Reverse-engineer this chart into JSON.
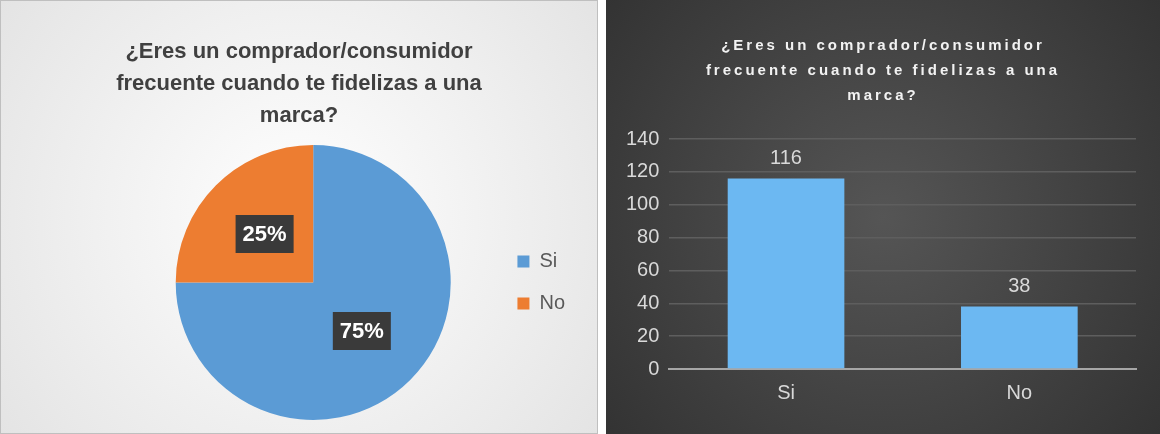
{
  "chart_data": [
    {
      "type": "pie",
      "title": "¿Eres un comprador/consumidor frecuente cuando te fidelizas a una marca?",
      "categories": [
        "Si",
        "No"
      ],
      "values": [
        75,
        25
      ],
      "colors": [
        "#5b9bd5",
        "#ed7d31"
      ],
      "value_labels": [
        "75%",
        "25%"
      ],
      "legend": "right"
    },
    {
      "type": "bar",
      "title": "¿Eres un comprador/consumidor frecuente cuando te fidelizas a una marca?",
      "categories": [
        "Si",
        "No"
      ],
      "values": [
        116,
        38
      ],
      "color": "#6cb8f2",
      "ylim": [
        0,
        140
      ],
      "yticks": [
        0,
        20,
        40,
        60,
        80,
        100,
        120,
        140
      ],
      "grid": "y",
      "data_labels": true,
      "legend": false
    }
  ]
}
